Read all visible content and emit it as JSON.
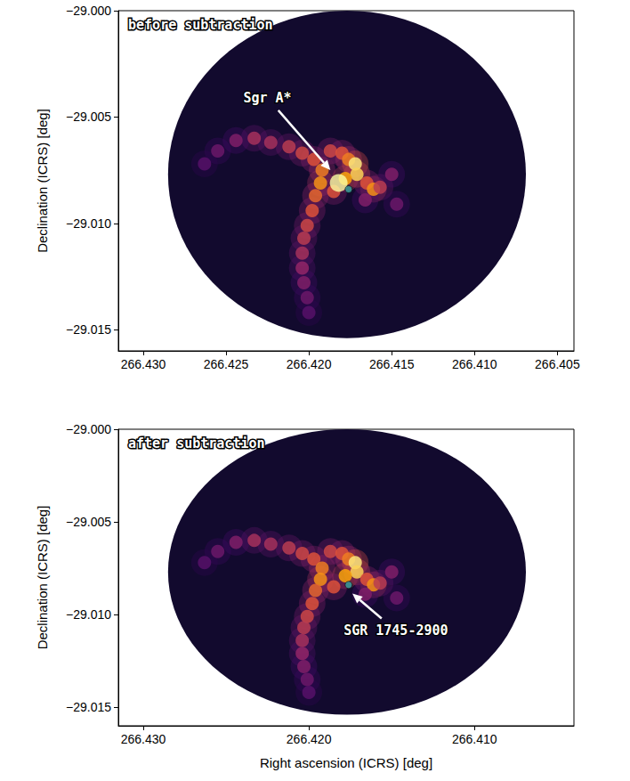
{
  "chart_data": [
    {
      "type": "scatter",
      "title": "before subtraction",
      "ylabel": "Declination (ICRS) [deg]",
      "xlim": [
        266.4315,
        266.404
      ],
      "xticks": [
        {
          "value": 266.43,
          "label": "266.430"
        },
        {
          "value": 266.425,
          "label": "266.425"
        },
        {
          "value": 266.42,
          "label": "266.420"
        },
        {
          "value": 266.415,
          "label": "266.415"
        },
        {
          "value": 266.41,
          "label": "266.410"
        },
        {
          "value": 266.405,
          "label": "266.405"
        }
      ],
      "ylim": [
        -29.016,
        -29.0
      ],
      "yticks": [
        {
          "value": -29.0,
          "label": "−29.000"
        },
        {
          "value": -29.005,
          "label": "−29.005"
        },
        {
          "value": -29.01,
          "label": "−29.010"
        },
        {
          "value": -29.015,
          "label": "−29.015"
        }
      ],
      "field_of_view": {
        "ra": 266.4177,
        "dec": -29.0077,
        "radius_ra": 0.0108,
        "radius_dec": 0.0077
      },
      "emission": [
        [
          266.4255,
          -29.0066,
          0.3
        ],
        [
          266.4263,
          -29.0072,
          0.25
        ],
        [
          266.4244,
          -29.0061,
          0.35
        ],
        [
          266.4233,
          -29.006,
          0.45
        ],
        [
          266.4223,
          -29.0062,
          0.45
        ],
        [
          266.4212,
          -29.0064,
          0.5
        ],
        [
          266.4204,
          -29.0067,
          0.55
        ],
        [
          266.4197,
          -29.007,
          0.6
        ],
        [
          266.4192,
          -29.0075,
          0.7
        ],
        [
          266.4193,
          -29.0081,
          0.75
        ],
        [
          266.4196,
          -29.0087,
          0.65
        ],
        [
          266.4198,
          -29.0094,
          0.6
        ],
        [
          266.4201,
          -29.0101,
          0.55
        ],
        [
          266.4203,
          -29.0107,
          0.5
        ],
        [
          266.4204,
          -29.0114,
          0.45
        ],
        [
          266.4204,
          -29.0121,
          0.4
        ],
        [
          266.4203,
          -29.0128,
          0.35
        ],
        [
          266.4201,
          -29.0135,
          0.3
        ],
        [
          266.42,
          -29.0142,
          0.25
        ],
        [
          266.4187,
          -29.0066,
          0.55
        ],
        [
          266.418,
          -29.0067,
          0.6
        ],
        [
          266.4176,
          -29.007,
          0.7
        ],
        [
          266.4172,
          -29.0072,
          0.95
        ],
        [
          266.4171,
          -29.0077,
          0.9
        ],
        [
          266.4178,
          -29.0079,
          0.8
        ],
        [
          266.4185,
          -29.0085,
          0.6
        ],
        [
          266.4165,
          -29.0081,
          0.6
        ],
        [
          266.4161,
          -29.0084,
          0.75
        ],
        [
          266.4157,
          -29.0083,
          0.5
        ],
        [
          266.4166,
          -29.0089,
          0.35
        ],
        [
          266.415,
          -29.0077,
          0.35
        ],
        [
          266.4147,
          -29.0091,
          0.3
        ]
      ],
      "sources": [
        {
          "x": 266.4182,
          "y": -29.0081,
          "color": "#fcffa4"
        },
        {
          "x": 266.4176,
          "y": -29.0084,
          "color": "#3aa6a0"
        }
      ],
      "annotations": [
        {
          "text": "Sgr A*",
          "xy": [
            266.4187,
            -29.0075
          ],
          "xytext": [
            266.4225,
            -29.0041
          ]
        }
      ]
    },
    {
      "type": "scatter",
      "title": "after subtraction",
      "xlabel": "Right ascension (ICRS) [deg]",
      "ylabel": "Declination (ICRS) [deg]",
      "xlim": [
        266.4315,
        266.404
      ],
      "xticks": [
        {
          "value": 266.43,
          "label": "266.430"
        },
        {
          "value": 266.42,
          "label": "266.420"
        },
        {
          "value": 266.41,
          "label": "266.410"
        }
      ],
      "ylim": [
        -29.016,
        -29.0
      ],
      "yticks": [
        {
          "value": -29.0,
          "label": "−29.000"
        },
        {
          "value": -29.005,
          "label": "−29.005"
        },
        {
          "value": -29.01,
          "label": "−29.010"
        },
        {
          "value": -29.015,
          "label": "−29.015"
        }
      ],
      "field_of_view": {
        "ra": 266.4177,
        "dec": -29.0077,
        "radius_ra": 0.0108,
        "radius_dec": 0.0077
      },
      "emission": [
        [
          266.4255,
          -29.0066,
          0.3
        ],
        [
          266.4263,
          -29.0072,
          0.25
        ],
        [
          266.4244,
          -29.0061,
          0.35
        ],
        [
          266.4233,
          -29.006,
          0.45
        ],
        [
          266.4223,
          -29.0062,
          0.45
        ],
        [
          266.4212,
          -29.0064,
          0.5
        ],
        [
          266.4204,
          -29.0067,
          0.55
        ],
        [
          266.4197,
          -29.007,
          0.6
        ],
        [
          266.4192,
          -29.0075,
          0.7
        ],
        [
          266.4193,
          -29.0081,
          0.75
        ],
        [
          266.4196,
          -29.0087,
          0.65
        ],
        [
          266.4198,
          -29.0094,
          0.6
        ],
        [
          266.4201,
          -29.0101,
          0.55
        ],
        [
          266.4203,
          -29.0107,
          0.5
        ],
        [
          266.4204,
          -29.0114,
          0.45
        ],
        [
          266.4204,
          -29.0121,
          0.4
        ],
        [
          266.4203,
          -29.0128,
          0.35
        ],
        [
          266.4201,
          -29.0135,
          0.3
        ],
        [
          266.42,
          -29.0142,
          0.25
        ],
        [
          266.4187,
          -29.0066,
          0.55
        ],
        [
          266.418,
          -29.0067,
          0.6
        ],
        [
          266.4176,
          -29.007,
          0.7
        ],
        [
          266.4172,
          -29.0072,
          0.95
        ],
        [
          266.4171,
          -29.0077,
          0.9
        ],
        [
          266.4178,
          -29.0079,
          0.8
        ],
        [
          266.4185,
          -29.0085,
          0.6
        ],
        [
          266.4165,
          -29.0081,
          0.6
        ],
        [
          266.4161,
          -29.0084,
          0.75
        ],
        [
          266.4157,
          -29.0083,
          0.5
        ],
        [
          266.4166,
          -29.0089,
          0.35
        ],
        [
          266.415,
          -29.0077,
          0.35
        ],
        [
          266.4147,
          -29.0091,
          0.3
        ]
      ],
      "sources": [
        {
          "x": 266.4176,
          "y": -29.0084,
          "color": "#3aa6a0"
        }
      ],
      "annotations": [
        {
          "text": "SGR 1745-2900",
          "xy": [
            266.41737,
            -29.00887
          ],
          "xytext": [
            266.41475,
            -29.01086
          ]
        }
      ]
    }
  ]
}
